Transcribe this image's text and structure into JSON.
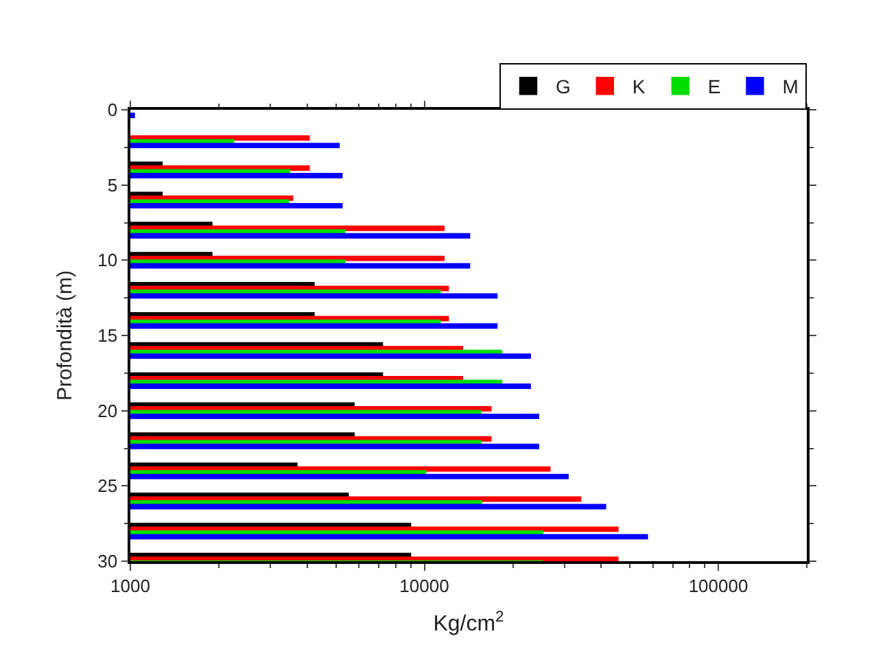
{
  "chart_data": {
    "type": "bar",
    "orientation": "horizontal",
    "xlabel": "Kg/cm$^{2}$",
    "ylabel": "Profondità (m)",
    "x": [
      0,
      2,
      4,
      6,
      8,
      10,
      12,
      14,
      16,
      18,
      20,
      22,
      24,
      26,
      28,
      30
    ],
    "series": [
      {
        "name": "G",
        "color": "#000000",
        "values": [
          null,
          null,
          1280,
          1280,
          1890,
          1890,
          4210,
          4210,
          7190,
          7190,
          5760,
          5760,
          3680,
          5500,
          8960,
          8960
        ]
      },
      {
        "name": "K",
        "color": "#ff0000",
        "values": [
          null,
          4050,
          4050,
          3560,
          11650,
          11650,
          12050,
          12050,
          13470,
          13470,
          16820,
          16820,
          26700,
          33980,
          45500,
          45500
        ]
      },
      {
        "name": "E",
        "color": "#00dd00",
        "values": [
          null,
          2240,
          3480,
          3450,
          5360,
          5360,
          11300,
          11300,
          18290,
          18290,
          15530,
          15530,
          10070,
          15630,
          25220,
          25220
        ]
      },
      {
        "name": "M",
        "color": "#0000ff",
        "values": [
          1030,
          5120,
          5240,
          5240,
          14230,
          14230,
          17630,
          17630,
          22900,
          22900,
          24440,
          24440,
          30780,
          41300,
          57300,
          null
        ]
      }
    ],
    "log": "x",
    "xlim": [
      1000,
      200000
    ],
    "xticks": [
      1000,
      10000,
      100000
    ],
    "ylim": [
      30,
      0
    ],
    "yticks": [
      0,
      5,
      10,
      15,
      20,
      25,
      30
    ],
    "legend": "top right"
  }
}
